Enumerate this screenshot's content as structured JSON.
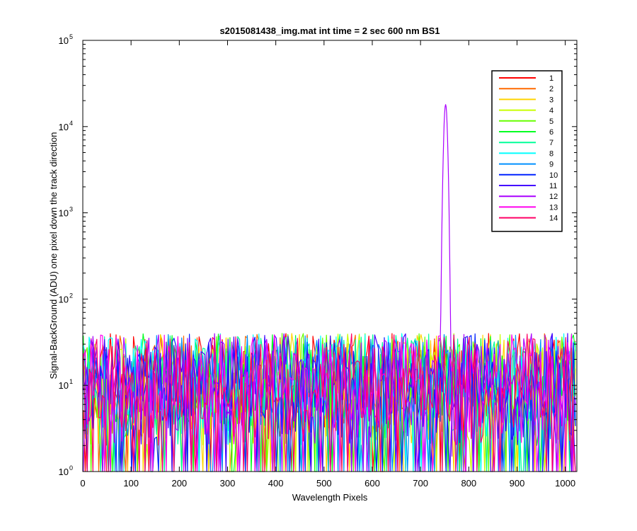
{
  "chart_data": {
    "type": "line",
    "title": "s2015081438_img.mat int time = 2 sec  600 nm BS1",
    "xlabel": "Wavelength Pixels",
    "ylabel": "Signal-BackGround (ADU) one pixel down the track direction",
    "xlim": [
      0,
      1024
    ],
    "ylim": [
      1,
      100000
    ],
    "yscale": "log",
    "grid": false,
    "legend_placement": "top-right",
    "x_ticks": [
      0,
      100,
      200,
      300,
      400,
      500,
      600,
      700,
      800,
      900,
      1000
    ],
    "x_tick_labels": [
      "0",
      "100",
      "200",
      "300",
      "400",
      "500",
      "600",
      "700",
      "800",
      "900",
      "1000"
    ],
    "y_ticks": [
      1,
      10,
      100,
      1000,
      10000,
      100000
    ],
    "y_tick_base": "10",
    "y_tick_exponents": [
      "0",
      "1",
      "2",
      "3",
      "4",
      "5"
    ],
    "noise_floor_range": [
      1,
      40
    ],
    "peak": {
      "series": "12",
      "x": 752,
      "y": 18000
    },
    "series": [
      {
        "name": "1",
        "color": "#ff0000"
      },
      {
        "name": "2",
        "color": "#ff6a00"
      },
      {
        "name": "3",
        "color": "#ffd400"
      },
      {
        "name": "4",
        "color": "#c8ff00"
      },
      {
        "name": "5",
        "color": "#66ff00"
      },
      {
        "name": "6",
        "color": "#00ff22"
      },
      {
        "name": "7",
        "color": "#00ff99"
      },
      {
        "name": "8",
        "color": "#00ffff"
      },
      {
        "name": "9",
        "color": "#0090ff"
      },
      {
        "name": "10",
        "color": "#0022ff"
      },
      {
        "name": "11",
        "color": "#4400ff"
      },
      {
        "name": "12",
        "color": "#aa00ff"
      },
      {
        "name": "13",
        "color": "#ff00ee"
      },
      {
        "name": "14",
        "color": "#ff0066"
      }
    ]
  }
}
